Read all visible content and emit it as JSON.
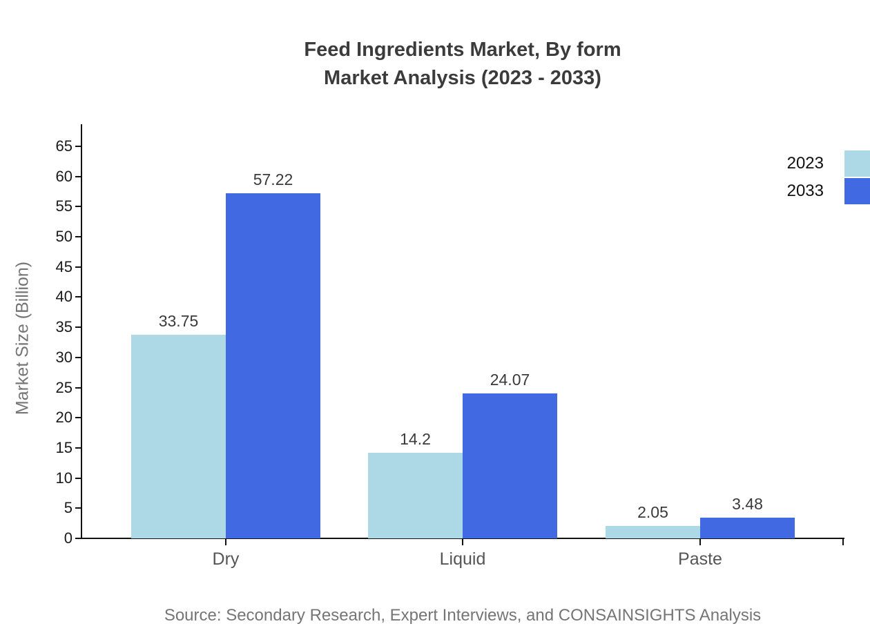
{
  "title": {
    "line1": "Feed Ingredients Market, By form",
    "line2": "Market Analysis (2023 - 2033)"
  },
  "source": "Source: Secondary Research, Expert Interviews, and CONSAINSIGHTS Analysis",
  "chart_data": {
    "type": "bar",
    "title": "Feed Ingredients Market, By form Market Analysis (2023 - 2033)",
    "ylabel": "Market Size (Billion)",
    "xlabel": "",
    "categories": [
      "Dry",
      "Liquid",
      "Paste"
    ],
    "series": [
      {
        "name": "2023",
        "color": "#ADD8E6",
        "values": [
          33.75,
          14.2,
          2.05
        ]
      },
      {
        "name": "2033",
        "color": "#4169E1",
        "values": [
          57.22,
          24.07,
          3.48
        ]
      }
    ],
    "ylim": [
      0,
      65
    ],
    "yticks": [
      0,
      5,
      10,
      15,
      20,
      25,
      30,
      35,
      40,
      45,
      50,
      55,
      60,
      65
    ],
    "grid": false,
    "legend_position": "right-edge",
    "value_labels": true
  }
}
